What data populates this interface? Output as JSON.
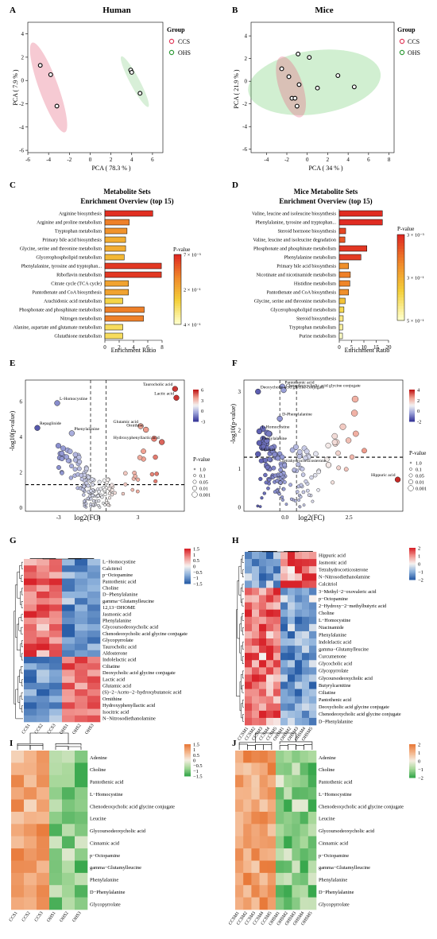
{
  "figure": {
    "A": {
      "letter": "A",
      "title": "Human",
      "xlabel": "PCA ( 78.3 % )",
      "ylabel": "PCA ( 7.9 % )",
      "xticks": [
        -6,
        -4,
        -2,
        0,
        2,
        4,
        6
      ],
      "yticks": [
        -6,
        -4,
        -2,
        0,
        2,
        4
      ],
      "legend_title": "Group",
      "legend": [
        "CCS",
        "OHS"
      ]
    },
    "B": {
      "letter": "B",
      "title": "Mice",
      "xlabel": "PCA ( 34 % )",
      "ylabel": "PCA ( 21.9 % )",
      "xticks": [
        -4,
        -2,
        0,
        2,
        4,
        6,
        8
      ],
      "yticks": [
        -6,
        -4,
        -2,
        0,
        2,
        4
      ],
      "legend_title": "Group",
      "legend": [
        "CCS",
        "OHS"
      ]
    },
    "C": {
      "letter": "C",
      "title1": "Metabolite Sets",
      "title2": "Enrichment Overview (top 15)",
      "xlabel": "Enrichment Ratio",
      "xticks": [
        0,
        2,
        4,
        6,
        8
      ],
      "legend_title": "P-value",
      "legend_ticks": [
        "7 × 10⁻³",
        "2 × 10⁻¹",
        "4 × 10⁻¹"
      ]
    },
    "D": {
      "letter": "D",
      "title1": "Mice Metabolite Sets",
      "title2": "Enrichment Overview (top 15)",
      "xlabel": "Enrichment Ratio",
      "xticks": [
        0,
        5,
        10,
        15,
        20
      ],
      "legend_title": "P-value",
      "legend_ticks": [
        "3 × 10⁻³",
        "3 × 10⁻¹",
        "5 × 10⁻¹"
      ]
    },
    "E": {
      "letter": "E",
      "xlabel": "log2(FC)",
      "ylabel": "-log10(p-value)",
      "xticks": [
        "-3",
        "0",
        "3"
      ],
      "yticks": [
        "0",
        "2",
        "4",
        "6"
      ],
      "cbar_ticks": [
        "6",
        "3",
        "0",
        "-3"
      ],
      "size_title": "P-value",
      "size_ticks": [
        "1.0",
        "0.1",
        "0.05",
        "0.01",
        "0.001"
      ]
    },
    "F": {
      "letter": "F",
      "xlabel": "log2(FC)",
      "ylabel": "-log10(p-value)",
      "xticks": [
        "0.0",
        "2.5"
      ],
      "yticks": [
        "0",
        "1",
        "2",
        "3"
      ],
      "cbar_ticks": [
        "4",
        "2",
        "0",
        "-2"
      ],
      "size_title": "P-value",
      "size_ticks": [
        "1.0",
        "0.1",
        "0.05",
        "0.01",
        "0.001"
      ]
    },
    "G": {
      "letter": "G",
      "cbar_ticks": [
        "1.5",
        "1",
        "0.5",
        "0",
        "−0.5",
        "−1",
        "−1.5"
      ]
    },
    "H": {
      "letter": "H",
      "cbar_ticks": [
        "2",
        "1",
        "0",
        "−1",
        "−2"
      ]
    },
    "I": {
      "letter": "I",
      "cbar_ticks": [
        "1.5",
        "1",
        "0.5",
        "0",
        "−0.5",
        "−1",
        "−1.5"
      ]
    },
    "J": {
      "letter": "J",
      "cbar_ticks": [
        "2",
        "1",
        "0",
        "−1",
        "−2"
      ]
    }
  },
  "chart_data": [
    {
      "panel": "A",
      "type": "scatter",
      "title": "Human",
      "xlabel": "PCA ( 78.3 % )",
      "ylabel": "PCA ( 7.9 % )",
      "xlim": [
        -6,
        7
      ],
      "ylim": [
        -6.2,
        5
      ],
      "series": [
        {
          "name": "CCS",
          "color": "#e23b5a",
          "points": [
            [
              -4.8,
              1.3
            ],
            [
              -3.8,
              0.5
            ],
            [
              -3.2,
              -2.2
            ]
          ]
        },
        {
          "name": "OHS",
          "color": "#2f9a37",
          "points": [
            [
              3.9,
              0.9
            ],
            [
              4.0,
              0.7
            ],
            [
              4.8,
              -1.1
            ]
          ]
        }
      ]
    },
    {
      "panel": "B",
      "type": "scatter",
      "title": "Mice",
      "xlabel": "PCA ( 34 % )",
      "ylabel": "PCA ( 21.9 % )",
      "xlim": [
        -5.5,
        8.5
      ],
      "ylim": [
        -6.3,
        5.2
      ],
      "series": [
        {
          "name": "CCS",
          "color": "#e23b5a",
          "points": [
            [
              -2.5,
              1.1
            ],
            [
              -1.5,
              -1.5
            ],
            [
              -1.2,
              -1.5
            ],
            [
              -1.0,
              -2.2
            ],
            [
              -0.8,
              -0.3
            ]
          ]
        },
        {
          "name": "OHS",
          "color": "#2f9a37",
          "points": [
            [
              -1.8,
              0.4
            ],
            [
              -0.9,
              2.4
            ],
            [
              0.2,
              2.1
            ],
            [
              1.0,
              -0.6
            ],
            [
              3.0,
              0.5
            ],
            [
              4.6,
              -0.5
            ]
          ]
        }
      ]
    },
    {
      "panel": "C",
      "type": "bar",
      "title": "Metabolite Sets Enrichment Overview (top 15)",
      "xlabel": "Enrichment Ratio",
      "categories": [
        "Arginine biosynthesis",
        "Arginine and proline metabolism",
        "Tryptophan metabolism",
        "Primary bile acid biosynthesis",
        "Glycine, serine and threonine metabolism",
        "Glycerophospholipid metabolism",
        "Phenylalanine, tyrosine and tryptophan...",
        "Riboflavin metabolism",
        "Citrate cycle (TCA cycle)",
        "Pantothenate and CoA biosynthesis",
        "Arachidonic acid metabolism",
        "Phosphonate and phosphinate metabolism",
        "Nitrogen metabolism",
        "Alanine, aspartate and glutamate metabolism",
        "Glutathione metabolism"
      ],
      "values": [
        6.7,
        3.4,
        3.1,
        2.9,
        2.9,
        2.7,
        7.9,
        7.9,
        3.3,
        3.3,
        2.5,
        5.5,
        5.4,
        2.5,
        2.5
      ],
      "pvalues": [
        0.007,
        0.12,
        0.15,
        0.2,
        0.2,
        0.22,
        0.02,
        0.02,
        0.18,
        0.18,
        0.28,
        0.12,
        0.12,
        0.3,
        0.3
      ],
      "xlim": [
        0,
        8
      ]
    },
    {
      "panel": "D",
      "type": "bar",
      "title": "Mice Metabolite Sets Enrichment Overview (top 15)",
      "xlabel": "Enrichment Ratio",
      "categories": [
        "Valine, leucine and isoleucine biosynthesis",
        "Phenylalanine, tyrosine and tryptophan...",
        "Steroid hormone biosynthesis",
        "Valine, leucine and isoleucine degradation",
        "Phosphonate and phosphinate metabolism",
        "Phenylalanine metabolism",
        "Primary bile acid biosynthesis",
        "Nicotinate and nicotinamide metabolism",
        "Histidine metabolism",
        "Pantothenate and CoA biosynthesis",
        "Glycine, serine and threonine metabolism",
        "Glycerophospholipid metabolism",
        "Steroid biosynthesis",
        "Tryptophan metabolism",
        "Purine metabolism"
      ],
      "values": [
        17.5,
        17.5,
        2.6,
        2.3,
        11.2,
        8.8,
        3.8,
        4.5,
        4.3,
        3.8,
        2.4,
        1.9,
        1.6,
        1.4,
        1.3
      ],
      "pvalues": [
        0.003,
        0.003,
        0.05,
        0.08,
        0.02,
        0.03,
        0.18,
        0.15,
        0.16,
        0.18,
        0.3,
        0.36,
        0.42,
        0.45,
        0.5
      ],
      "xlim": [
        0,
        20
      ]
    },
    {
      "panel": "E",
      "type": "scatter",
      "subtype": "volcano",
      "xlabel": "log2(FC)",
      "ylabel": "-log10(p-value)",
      "xlim": [
        -5.5,
        6.5
      ],
      "ylim": [
        -0.2,
        7.2
      ],
      "threshold_y": 1.3,
      "threshold_x": [
        -0.58,
        0.58
      ],
      "labels": [
        {
          "name": "Taurocholic acid",
          "x": 5.8,
          "y": 6.7
        },
        {
          "name": "Lactic acid",
          "x": 5.9,
          "y": 6.2
        },
        {
          "name": "L-Homocystine",
          "x": -3.1,
          "y": 5.9
        },
        {
          "name": "Repaglinide",
          "x": -4.6,
          "y": 4.5
        },
        {
          "name": "Phenylalanine",
          "x": -2.0,
          "y": 4.2
        },
        {
          "name": "Glutamic acid",
          "x": 3.2,
          "y": 4.6
        },
        {
          "name": "Ornithine",
          "x": 3.6,
          "y": 4.4
        },
        {
          "name": "Hydroxyphenyllactic acid",
          "x": 4.8,
          "y": 3.7
        }
      ]
    },
    {
      "panel": "F",
      "type": "scatter",
      "subtype": "volcano",
      "xlabel": "log2(FC)",
      "ylabel": "-log10(p-value)",
      "xlim": [
        -1.6,
        4.6
      ],
      "ylim": [
        -0.1,
        3.3
      ],
      "threshold_y": 1.3,
      "threshold_x": [
        -0.2,
        0.45
      ],
      "labels": [
        {
          "name": "Pantothenic acid",
          "x": -0.1,
          "y": 3.13
        },
        {
          "name": "Chenodeoxycholic acid glycine conjugate",
          "x": -0.05,
          "y": 3.04
        },
        {
          "name": "Deoxycholic acid glycine conjugate",
          "x": -1.05,
          "y": 3.0
        },
        {
          "name": "D-Phenylalanine",
          "x": -0.2,
          "y": 2.3
        },
        {
          "name": "L-Homocystine",
          "x": -1.0,
          "y": 1.97
        },
        {
          "name": "Phenylalanine",
          "x": -1.0,
          "y": 1.67
        },
        {
          "name": "Ciliatine",
          "x": -1.05,
          "y": 1.38
        },
        {
          "name": "Tetrahydrocorticosterone",
          "x": 1.7,
          "y": 1.1
        },
        {
          "name": "Hippuric acid",
          "x": 4.4,
          "y": 0.72
        }
      ]
    },
    {
      "panel": "G",
      "type": "heatmap",
      "columns": [
        "CCS1",
        "CCS2",
        "CCS3",
        "OHS1",
        "OHS2",
        "OHS3"
      ],
      "rows": [
        "L−Homocystine",
        "Calcitriol",
        "p−Octopamine",
        "Pantothenic acid",
        "Choline",
        "D−Phenylalanine",
        "gamma−Glutamylleucine",
        "12,13−DHOME",
        "Jasmonic acid",
        "Phenylalanine",
        "Glycoursodeoxycholic acid",
        "Chenodeoxycholic acid glycine conjugate",
        "Glycopyrrolate",
        "Taurocholic acid",
        "Aldosterone",
        "Indolelactic acid",
        "Ciliatine",
        "Deoxycholic acid glycine conjugate",
        "Lactic acid",
        "Glutamic acid",
        "(S)−2−Aceto−2−hydroxybutanoic acid",
        "Ornithine",
        "Hydroxyphenyllactic acid",
        "Isocitric acid",
        "N−Nitrosodiethanolamine"
      ]
    },
    {
      "panel": "H",
      "type": "heatmap",
      "columns": [
        "CCSM1",
        "CCSM2",
        "CCSM3",
        "CCSM4",
        "CCSM5",
        "OHSM1",
        "OHSM2",
        "OHSM3",
        "OHSM4",
        "OHSM5"
      ],
      "rows": [
        "Hippuric acid",
        "Jasmonic acid",
        "Tetrahydrocorticosterone",
        "N−Nitrosodiethanolamine",
        "Calcitriol",
        "3−Methyl−2−oxovaleric acid",
        "p−Octopamine",
        "2−Hydroxy−2−methylbutyric acid",
        "Choline",
        "L−Homocystine",
        "Niacinamide",
        "Phenylalanine",
        "Indolelactic acid",
        "gamma−Glutamylleucine",
        "Curcumenone",
        "Glycocholic acid",
        "Glycopyrrolate",
        "Glycoursodeoxycholic acid",
        "Butyrylcarnitine",
        "Ciliatine",
        "Pantothenic acid",
        "Deoxycholic acid glycine conjugate",
        "Chenodeoxycholic acid glycine conjugate",
        "D−Phenylalanine"
      ]
    },
    {
      "panel": "I",
      "type": "heatmap",
      "columns": [
        "CCS1",
        "CCS2",
        "CCS3",
        "OHS1",
        "OHS2",
        "OHS3"
      ],
      "rows": [
        "Adenine",
        "Choline",
        "Pantothenic acid",
        "L−Homocystine",
        "Chenodeoxycholic acid glycine conjugate",
        "Leucine",
        "Glycoursodeoxycholic acid",
        "Cinnamic acid",
        "p−Octopamine",
        "gamma−Glutamylleucine",
        "Phenylalanine",
        "D−Phenylalanine",
        "Glycopyrrolate"
      ]
    },
    {
      "panel": "J",
      "type": "heatmap",
      "columns": [
        "CCSM1",
        "CCSM2",
        "CCSM3",
        "CCSM4",
        "CCSM5",
        "OHSM1",
        "OHSM2",
        "OHSM3",
        "OHSM4",
        "OHSM5"
      ],
      "rows": [
        "Adenine",
        "Choline",
        "Pantothenic acid",
        "L−Homocystine",
        "Chenodeoxycholic acid glycine conjugate",
        "Leucine",
        "Glycoursodeoxycholic acid",
        "Cinnamic acid",
        "p−Octopamine",
        "gamma−Glutamylleucine",
        "Phenylalanine",
        "D−Phenylalanine",
        "Glycopyrrolate"
      ]
    }
  ]
}
